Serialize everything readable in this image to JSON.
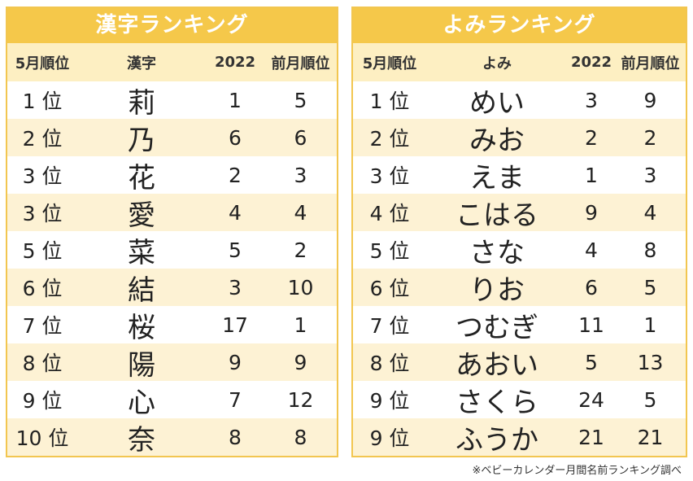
{
  "kanji_ranking": {
    "title": "漢字ランキング",
    "headers": [
      "5月順位",
      "漢字",
      "2022",
      "前月順位"
    ],
    "rows": [
      {
        "rank": "1 位",
        "name": "莉",
        "y2022": "1",
        "prev": "5"
      },
      {
        "rank": "2 位",
        "name": "乃",
        "y2022": "6",
        "prev": "6"
      },
      {
        "rank": "3 位",
        "name": "花",
        "y2022": "2",
        "prev": "3"
      },
      {
        "rank": "3 位",
        "name": "愛",
        "y2022": "4",
        "prev": "4"
      },
      {
        "rank": "5 位",
        "name": "菜",
        "y2022": "5",
        "prev": "2"
      },
      {
        "rank": "6 位",
        "name": "結",
        "y2022": "3",
        "prev": "10"
      },
      {
        "rank": "7 位",
        "name": "桜",
        "y2022": "17",
        "prev": "1"
      },
      {
        "rank": "8 位",
        "name": "陽",
        "y2022": "9",
        "prev": "9"
      },
      {
        "rank": "9 位",
        "name": "心",
        "y2022": "7",
        "prev": "12"
      },
      {
        "rank": "10 位",
        "name": "奈",
        "y2022": "8",
        "prev": "8"
      }
    ]
  },
  "yomi_ranking": {
    "title": "よみランキング",
    "headers": [
      "5月順位",
      "よみ",
      "2022",
      "前月順位"
    ],
    "rows": [
      {
        "rank": "1 位",
        "name": "めい",
        "y2022": "3",
        "prev": "9"
      },
      {
        "rank": "2 位",
        "name": "みお",
        "y2022": "2",
        "prev": "2"
      },
      {
        "rank": "3 位",
        "name": "えま",
        "y2022": "1",
        "prev": "3"
      },
      {
        "rank": "4 位",
        "name": "こはる",
        "y2022": "9",
        "prev": "4"
      },
      {
        "rank": "5 位",
        "name": "さな",
        "y2022": "4",
        "prev": "8"
      },
      {
        "rank": "6 位",
        "name": "りお",
        "y2022": "6",
        "prev": "5"
      },
      {
        "rank": "7 位",
        "name": "つむぎ",
        "y2022": "11",
        "prev": "1"
      },
      {
        "rank": "8 位",
        "name": "あおい",
        "y2022": "5",
        "prev": "13"
      },
      {
        "rank": "9 位",
        "name": "さくら",
        "y2022": "24",
        "prev": "5"
      },
      {
        "rank": "9 位",
        "name": "ふうか",
        "y2022": "21",
        "prev": "21"
      }
    ]
  },
  "footnote": "※ベビーカレンダー月間名前ランキング調べ",
  "colors": {
    "title_bg": "#f5c84a",
    "header_bg": "#fdefc2",
    "alt_row_bg": "#fdf2d4",
    "border": "#f2c650"
  }
}
